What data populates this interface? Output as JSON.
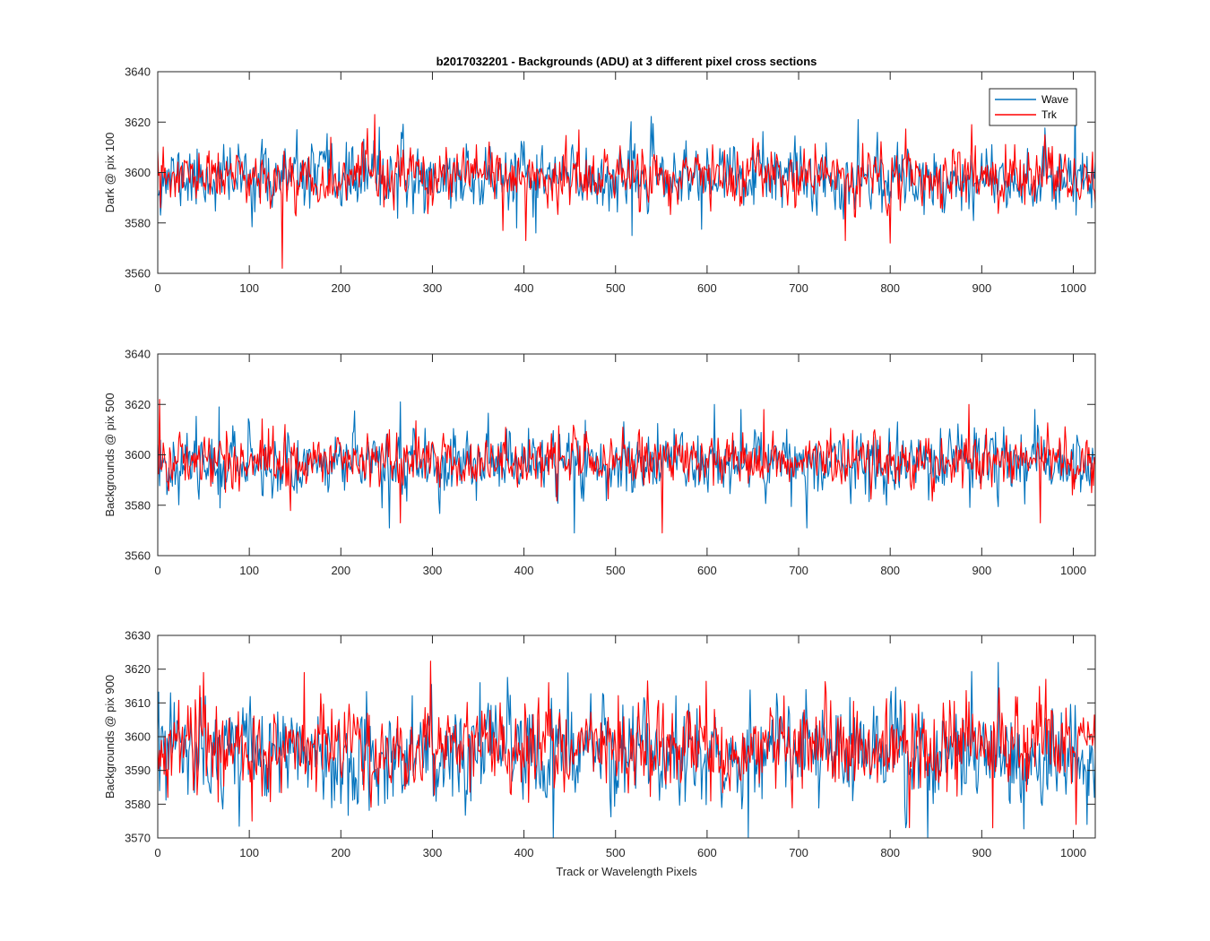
{
  "chart_data": {
    "type": "line",
    "title": "b2017032201 - Backgrounds (ADU) at 3 different pixel cross sections",
    "xlabel": "Track or Wavelength Pixels",
    "legend": {
      "position": "top-right",
      "entries": [
        "Wave",
        "Trk"
      ]
    },
    "series_colors": {
      "Wave": "#0072BD",
      "Trk": "#FF0000"
    },
    "x_range": [
      0,
      1024
    ],
    "x_ticks": [
      "0",
      "100",
      "200",
      "300",
      "400",
      "500",
      "600",
      "700",
      "800",
      "900",
      "1000"
    ],
    "x_tick_values": [
      0,
      100,
      200,
      300,
      400,
      500,
      600,
      700,
      800,
      900,
      1000
    ],
    "panels": [
      {
        "ylabel": "Dark @ pix 100",
        "ylim": [
          3560,
          3640
        ],
        "y_ticks": [
          "3560",
          "3580",
          "3600",
          "3620",
          "3640"
        ],
        "y_tick_values": [
          3560,
          3580,
          3600,
          3620,
          3640
        ],
        "series": [
          {
            "name": "Wave",
            "mean": 3598,
            "spread": 6.5,
            "seed": 11,
            "extremes": [
              [
                152,
                3617
              ],
              [
                242,
                3618
              ],
              [
                392,
                3578
              ],
              [
                413,
                3576
              ],
              [
                518,
                3575
              ],
              [
                765,
                3621
              ],
              [
                1002,
                3630
              ],
              [
                1020,
                3586
              ]
            ]
          },
          {
            "name": "Trk",
            "mean": 3598,
            "spread": 5.5,
            "seed": 23,
            "extremes": [
              [
                3,
                3586
              ],
              [
                136,
                3562
              ],
              [
                237,
                3623
              ],
              [
                189,
                3614
              ],
              [
                377,
                3577
              ],
              [
                402,
                3573
              ],
              [
                751,
                3573
              ],
              [
                800,
                3572
              ],
              [
                889,
                3619
              ]
            ]
          }
        ]
      },
      {
        "ylabel": "Backgrounds @ pix 500",
        "ylim": [
          3560,
          3640
        ],
        "y_ticks": [
          "3560",
          "3580",
          "3600",
          "3620",
          "3640"
        ],
        "y_tick_values": [
          3560,
          3580,
          3600,
          3620,
          3640
        ],
        "series": [
          {
            "name": "Wave",
            "mean": 3597,
            "spread": 6.5,
            "seed": 37,
            "extremes": [
              [
                67,
                3619
              ],
              [
                253,
                3571
              ],
              [
                265,
                3621
              ],
              [
                455,
                3569
              ],
              [
                608,
                3620
              ],
              [
                637,
                3618
              ],
              [
                709,
                3571
              ],
              [
                958,
                3618
              ]
            ]
          },
          {
            "name": "Trk",
            "mean": 3598,
            "spread": 5.5,
            "seed": 41,
            "extremes": [
              [
                2,
                3622
              ],
              [
                253,
                3610
              ],
              [
                265,
                3573
              ],
              [
                551,
                3569
              ],
              [
                662,
                3618
              ],
              [
                886,
                3620
              ],
              [
                964,
                3573
              ],
              [
                1020,
                3585
              ]
            ]
          }
        ]
      },
      {
        "ylabel": "Backgrounds @ pix 900",
        "ylim": [
          3570,
          3630
        ],
        "y_ticks": [
          "3570",
          "3580",
          "3590",
          "3600",
          "3610",
          "3620",
          "3630"
        ],
        "y_tick_values": [
          3570,
          3580,
          3590,
          3600,
          3610,
          3620,
          3630
        ],
        "series": [
          {
            "name": "Wave",
            "mean": 3595,
            "spread": 7.5,
            "seed": 53,
            "extremes": [
              [
                14,
                3613
              ],
              [
                352,
                3616
              ],
              [
                432,
                3570
              ],
              [
                645,
                3570
              ],
              [
                918,
                3622
              ],
              [
                1015,
                3574
              ]
            ]
          },
          {
            "name": "Trk",
            "mean": 3597,
            "spread": 6.5,
            "seed": 67,
            "extremes": [
              [
                50,
                3619
              ],
              [
                103,
                3575
              ],
              [
                160,
                3619
              ],
              [
                427,
                3616
              ],
              [
                730,
                3613
              ],
              [
                912,
                3573
              ],
              [
                970,
                3617
              ],
              [
                1003,
                3574
              ]
            ]
          }
        ]
      }
    ]
  }
}
